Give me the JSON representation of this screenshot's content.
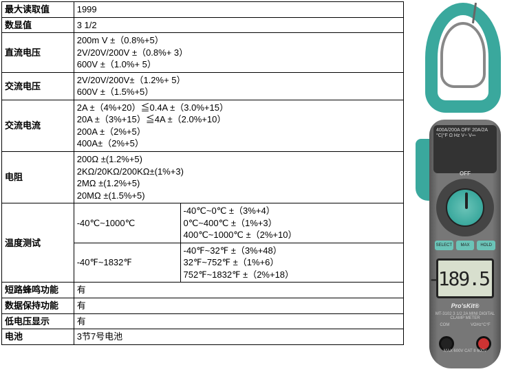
{
  "table": {
    "rows": [
      {
        "label": "最大读取值",
        "lines": [
          "1999"
        ]
      },
      {
        "label": "数显值",
        "lines": [
          "3 1/2"
        ]
      },
      {
        "label": "直流电压",
        "lines": [
          "200m V ±（0.8%+5）",
          "2V/20V/200V ±（0.8%+ 3）",
          "600V  ±（1.0%+ 5）"
        ]
      },
      {
        "label": "交流电压",
        "lines": [
          "2V/20V/200V±（1.2%+ 5）",
          "600V ±（1.5%+5）"
        ]
      },
      {
        "label": "交流电流",
        "lines": [
          "2A ±（4%+20）≦0.4A ±（3.0%+15）",
          "20A ±（3%+15）≦4A ±（2.0%+10）",
          "200A ±（2%+5）",
          "400A±（2%+5）"
        ]
      },
      {
        "label": "电阻",
        "lines": [
          "200Ω ±(1.2%+5)",
          "2KΩ/20KΩ/200KΩ±(1%+3)",
          "2MΩ ±(1.2%+5)",
          "20MΩ ±(1.5%+5)"
        ]
      }
    ],
    "temp": {
      "label": "温度测试",
      "rowC": {
        "range": "-40℃~1000℃",
        "lines": [
          "-40℃~0℃ ±（3%+4）",
          "0℃~400℃ ±（1%+3）",
          "400℃~1000℃ ±（2%+10）"
        ]
      },
      "rowF": {
        "range": "-40℉~1832℉",
        "lines": [
          "-40℉~32℉ ±（3%+48）",
          "32℉~752℉ ±（1%+6）",
          "752℉~1832℉ ±（2%+18）"
        ]
      }
    },
    "tail": [
      {
        "label": "短路蜂鸣功能",
        "value": "有"
      },
      {
        "label": "数据保持功能",
        "value": "有"
      },
      {
        "label": "低电压显示",
        "value": "有"
      },
      {
        "label": "电池",
        "value": "3节7号电池"
      }
    ]
  },
  "meter": {
    "panel_lines": "400A/200A  OFF\n20A/2A\n°C|°F\nΩ  Hz\nV~  V⎓",
    "off": "OFF",
    "buttons": [
      "SELECT",
      "MAX",
      "HOLD"
    ],
    "lcd": "-189.5",
    "brand": "Pro'sKit®",
    "model": "MT-3102   3 1/2 2A MINI DIGITAL CLAMP METER",
    "jack_com": "COM",
    "jack_v": "VΩHz°C°F",
    "maxv": "MAX 600V   CAT II 600V"
  },
  "colors": {
    "teal": "#3aa89d",
    "body_grey": "#6e6e6e",
    "lcd_bg": "#d8dfce"
  }
}
